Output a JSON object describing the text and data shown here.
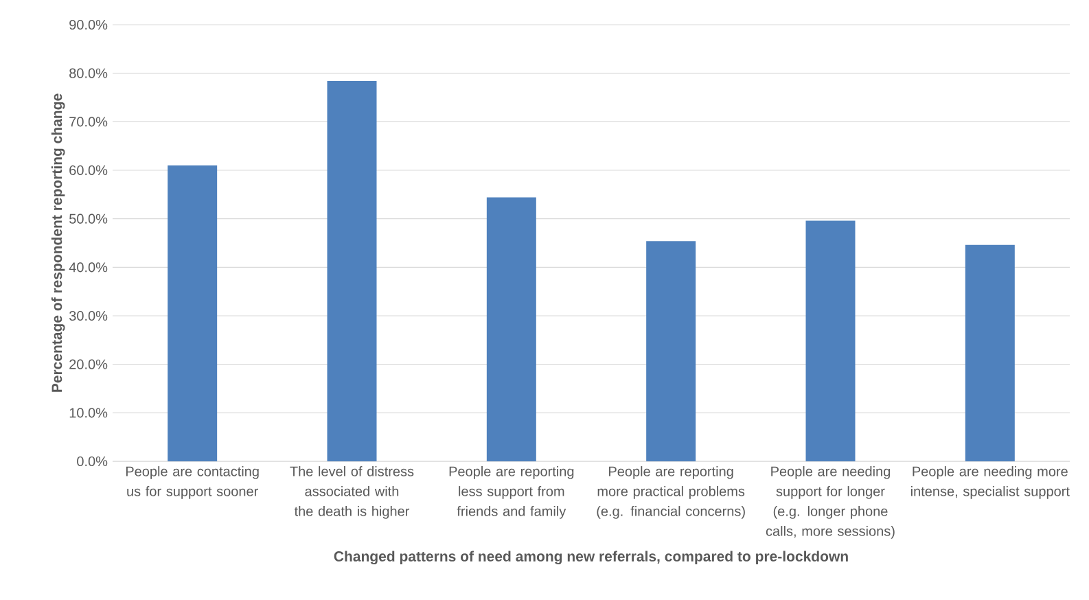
{
  "chart_data": {
    "type": "bar",
    "xlabel": "Changed patterns of need among new referrals, compared to pre-lockdown",
    "ylabel": "Percentage of respondent reporting change",
    "categories": [
      "People are contacting us for support sooner",
      "The level of distress associated with the death is higher",
      "People are reporting less support from friends and family",
      "People are reporting more practical problems (e.g. financial concerns)",
      "People are needing support for longer (e.g. longer phone calls, more sessions)",
      "People are needing more intense, specialist support"
    ],
    "values": [
      61.0,
      78.4,
      54.4,
      45.4,
      49.6,
      44.6
    ],
    "color": "#4f81bd",
    "ylim": [
      0,
      90
    ],
    "yticks": [
      {
        "value": 0,
        "label": "0.0%"
      },
      {
        "value": 10,
        "label": "10.0%"
      },
      {
        "value": 20,
        "label": "20.0%"
      },
      {
        "value": 30,
        "label": "30.0%"
      },
      {
        "value": 40,
        "label": "40.0%"
      },
      {
        "value": 50,
        "label": "50.0%"
      },
      {
        "value": 60,
        "label": "60.0%"
      },
      {
        "value": 70,
        "label": "70.0%"
      },
      {
        "value": 80,
        "label": "80.0%"
      },
      {
        "value": 90,
        "label": "90.0%"
      }
    ],
    "grid": "y"
  }
}
